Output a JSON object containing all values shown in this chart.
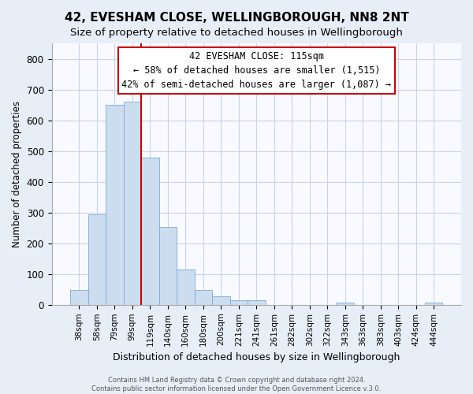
{
  "title": "42, EVESHAM CLOSE, WELLINGBOROUGH, NN8 2NT",
  "subtitle": "Size of property relative to detached houses in Wellingborough",
  "xlabel": "Distribution of detached houses by size in Wellingborough",
  "ylabel": "Number of detached properties",
  "bar_labels": [
    "38sqm",
    "58sqm",
    "79sqm",
    "99sqm",
    "119sqm",
    "140sqm",
    "160sqm",
    "180sqm",
    "200sqm",
    "221sqm",
    "241sqm",
    "261sqm",
    "282sqm",
    "302sqm",
    "322sqm",
    "343sqm",
    "363sqm",
    "383sqm",
    "403sqm",
    "424sqm",
    "444sqm"
  ],
  "bar_heights": [
    47,
    293,
    651,
    660,
    478,
    254,
    114,
    48,
    28,
    15,
    14,
    0,
    0,
    0,
    0,
    8,
    0,
    0,
    0,
    0,
    8
  ],
  "bar_color": "#ccddf0",
  "bar_edge_color": "#7aaad4",
  "vline_index": 4,
  "vline_color": "#cc0000",
  "ylim": [
    0,
    850
  ],
  "yticks": [
    0,
    100,
    200,
    300,
    400,
    500,
    600,
    700,
    800
  ],
  "annotation_title": "42 EVESHAM CLOSE: 115sqm",
  "annotation_line1": "← 58% of detached houses are smaller (1,515)",
  "annotation_line2": "42% of semi-detached houses are larger (1,087) →",
  "footer1": "Contains HM Land Registry data © Crown copyright and database right 2024.",
  "footer2": "Contains public sector information licensed under the Open Government Licence v.3.0.",
  "bg_color": "#e8eef8",
  "plot_bg_color": "#f8faff",
  "grid_color": "#c8d4e8",
  "title_fontsize": 11,
  "subtitle_fontsize": 9.5
}
